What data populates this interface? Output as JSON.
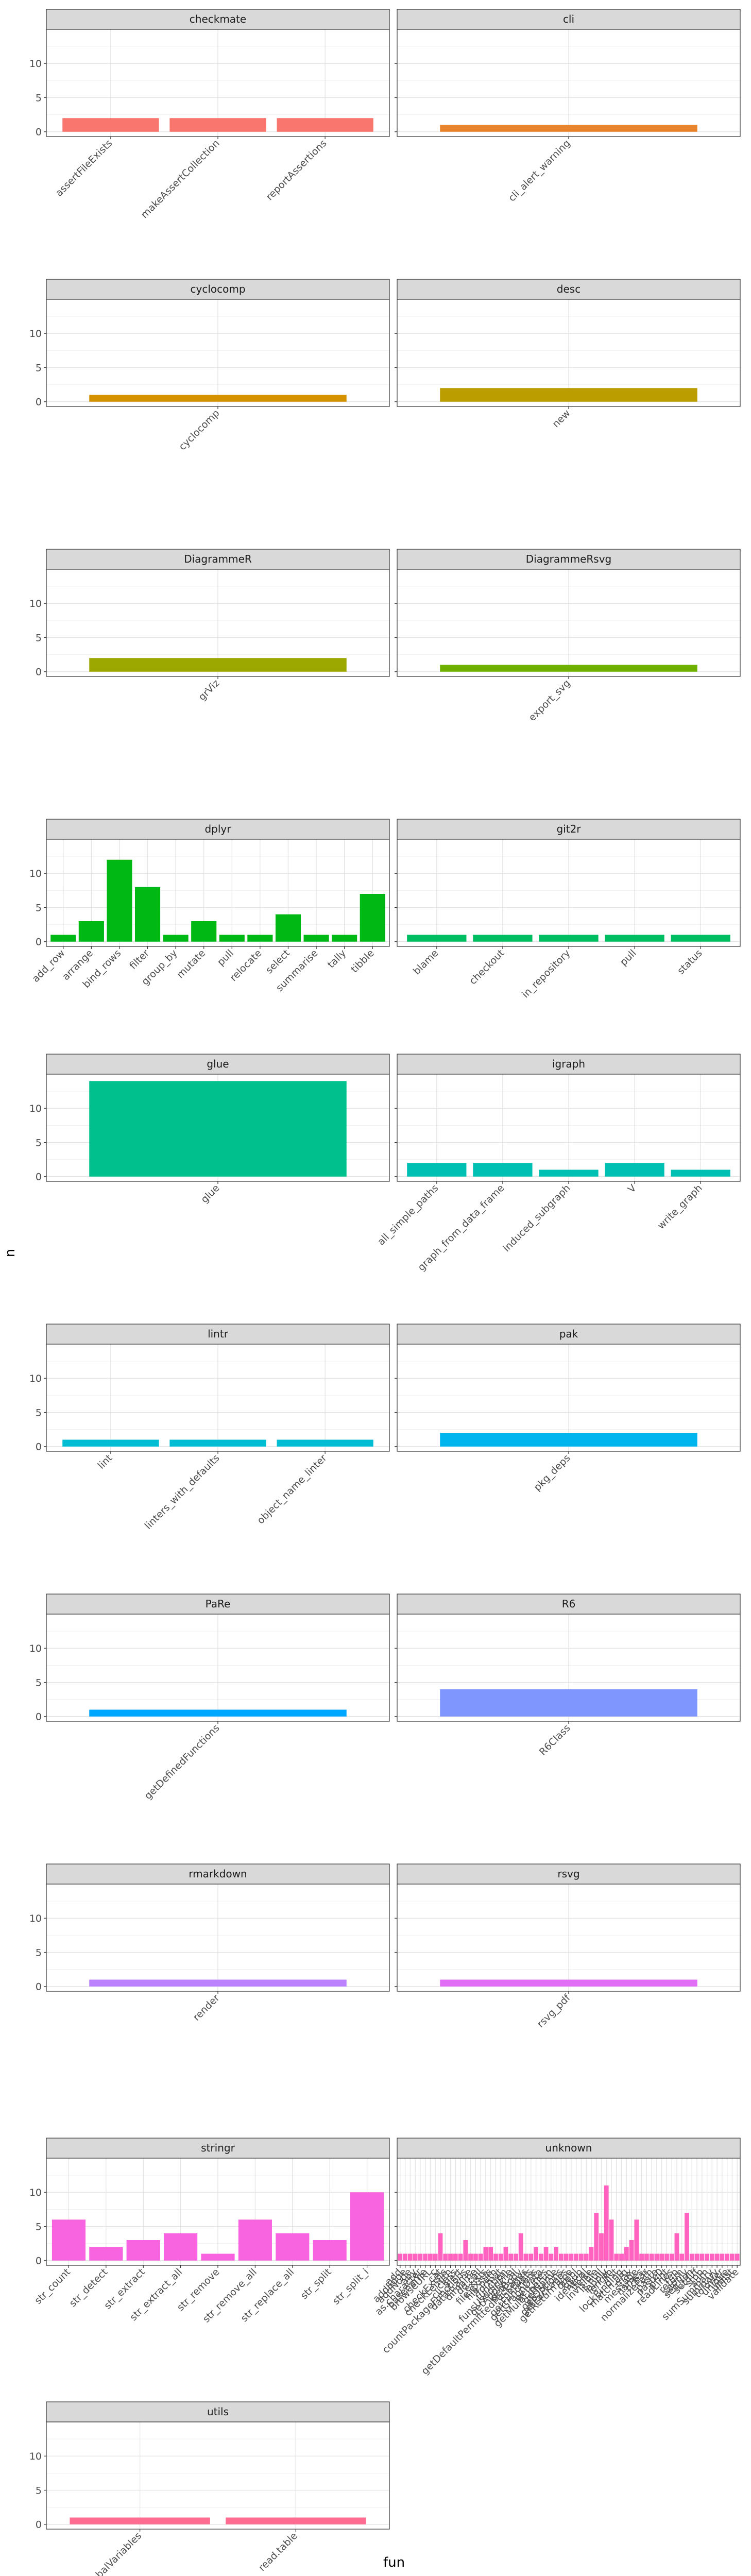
{
  "chart_data": {
    "type": "bar",
    "xlabel": "fun",
    "ylabel": "n",
    "ylim": [
      0,
      15
    ],
    "yticks": [
      0,
      5,
      10
    ],
    "grid": true,
    "legend": "none",
    "panels": [
      {
        "name": "checkmate",
        "color": "#F8766D",
        "categories": [
          "assertFileExists",
          "makeAssertCollection",
          "reportAssertions"
        ],
        "values": [
          2,
          2,
          2
        ]
      },
      {
        "name": "cli",
        "color": "#E9842C",
        "categories": [
          "cli_alert_warning"
        ],
        "values": [
          1
        ]
      },
      {
        "name": "cyclocomp",
        "color": "#D69100",
        "categories": [
          "cyclocomp"
        ],
        "values": [
          1
        ]
      },
      {
        "name": "desc",
        "color": "#BC9D00",
        "categories": [
          "new"
        ],
        "values": [
          2
        ]
      },
      {
        "name": "DiagrammeR",
        "color": "#9CA700",
        "categories": [
          "grViz"
        ],
        "values": [
          2
        ]
      },
      {
        "name": "DiagrammeRsvg",
        "color": "#6FB000",
        "categories": [
          "export_svg"
        ],
        "values": [
          1
        ]
      },
      {
        "name": "dplyr",
        "color": "#00B813",
        "categories": [
          "add_row",
          "arrange",
          "bind_rows",
          "filter",
          "group_by",
          "mutate",
          "pull",
          "relocate",
          "select",
          "summarise",
          "tally",
          "tibble"
        ],
        "values": [
          1,
          3,
          12,
          8,
          1,
          3,
          1,
          1,
          4,
          1,
          1,
          7
        ]
      },
      {
        "name": "git2r",
        "color": "#00BD61",
        "categories": [
          "blame",
          "checkout",
          "in_repository",
          "pull",
          "status"
        ],
        "values": [
          1,
          1,
          1,
          1,
          1
        ]
      },
      {
        "name": "glue",
        "color": "#00C08E",
        "categories": [
          "glue"
        ],
        "values": [
          14
        ]
      },
      {
        "name": "igraph",
        "color": "#00C0B4",
        "categories": [
          "all_simple_paths",
          "graph_from_data_frame",
          "induced_subgraph",
          "V",
          "write_graph"
        ],
        "values": [
          2,
          2,
          1,
          2,
          1
        ]
      },
      {
        "name": "lintr",
        "color": "#00BDD4",
        "categories": [
          "lint",
          "linters_with_defaults",
          "object_name_linter"
        ],
        "values": [
          1,
          1,
          1
        ]
      },
      {
        "name": "pak",
        "color": "#00B5EE",
        "categories": [
          "pkg_deps"
        ],
        "values": [
          2
        ]
      },
      {
        "name": "PaRe",
        "color": "#00A7FF",
        "categories": [
          "getDefinedFunctions"
        ],
        "values": [
          1
        ]
      },
      {
        "name": "R6",
        "color": "#7F96FF",
        "categories": [
          "R6Class"
        ],
        "values": [
          4
        ]
      },
      {
        "name": "rmarkdown",
        "color": "#BC81FF",
        "categories": [
          "render"
        ],
        "values": [
          1
        ]
      },
      {
        "name": "rsvg",
        "color": "#E26EF7",
        "categories": [
          "rsvg_pdf"
        ],
        "values": [
          1
        ]
      },
      {
        "name": "stringr",
        "color": "#F863DF",
        "categories": [
          "str_count",
          "str_detect",
          "str_extract",
          "str_extract_all",
          "str_remove",
          "str_remove_all",
          "str_replace_all",
          "str_split",
          "str_split_i"
        ],
        "values": [
          6,
          2,
          3,
          4,
          1,
          6,
          4,
          3,
          10
        ]
      },
      {
        "name": "unknown",
        "color": "#FF62BF",
        "categories": [
          "add",
          "addEdge",
          "addNode",
          "any",
          "as.character",
          "basename",
          "browseURL",
          "c",
          "cat",
          "checkExists",
          "checkLength",
          "class",
          "cli_alert",
          "countPackageFunctions",
          "data.frame",
          "dirname",
          "do.call",
          "exists",
          "file.exists",
          "file.path",
          "format",
          "function",
          "funsUsedInFile",
          "getApplyCall",
          "getBody",
          "getDefaultPermittedPackages",
          "getDefs",
          "getFunctions",
          "getGraphData",
          "getLines",
          "getMultiLineFun",
          "getName",
          "getOptions",
          "getPackages",
          "getReturnType",
          "grepl",
          "gsub",
          "identical",
          "ifelse",
          "invisible",
          "is.null",
          "lapply",
          "length",
          "list",
          "lockBinding",
          "match.arg",
          "max",
          "message",
          "names",
          "nchar",
          "normalizePath",
          "paste",
          "paste0",
          "print",
          "readLines",
          "rep",
          "return",
          "sapply",
          "seq_len",
          "setdiff",
          "stop",
          "sum",
          "sumSummary",
          "summary",
          "tolower",
          "unique",
          "unlist",
          "validate"
        ],
        "values": [
          1,
          1,
          1,
          1,
          1,
          1,
          1,
          1,
          4,
          1,
          1,
          1,
          1,
          3,
          1,
          1,
          1,
          2,
          2,
          1,
          1,
          2,
          1,
          1,
          4,
          1,
          1,
          2,
          1,
          2,
          1,
          2,
          1,
          1,
          1,
          1,
          1,
          1,
          2,
          7,
          4,
          11,
          6,
          1,
          1,
          2,
          3,
          6,
          1,
          1,
          1,
          1,
          1,
          1,
          1,
          4,
          1,
          7,
          1,
          1,
          1,
          1,
          1,
          1,
          1,
          1,
          1,
          1
        ]
      },
      {
        "name": "utils",
        "color": "#FF6C91",
        "categories": [
          "globalVariables",
          "read.table"
        ],
        "values": [
          1,
          1
        ]
      }
    ]
  }
}
